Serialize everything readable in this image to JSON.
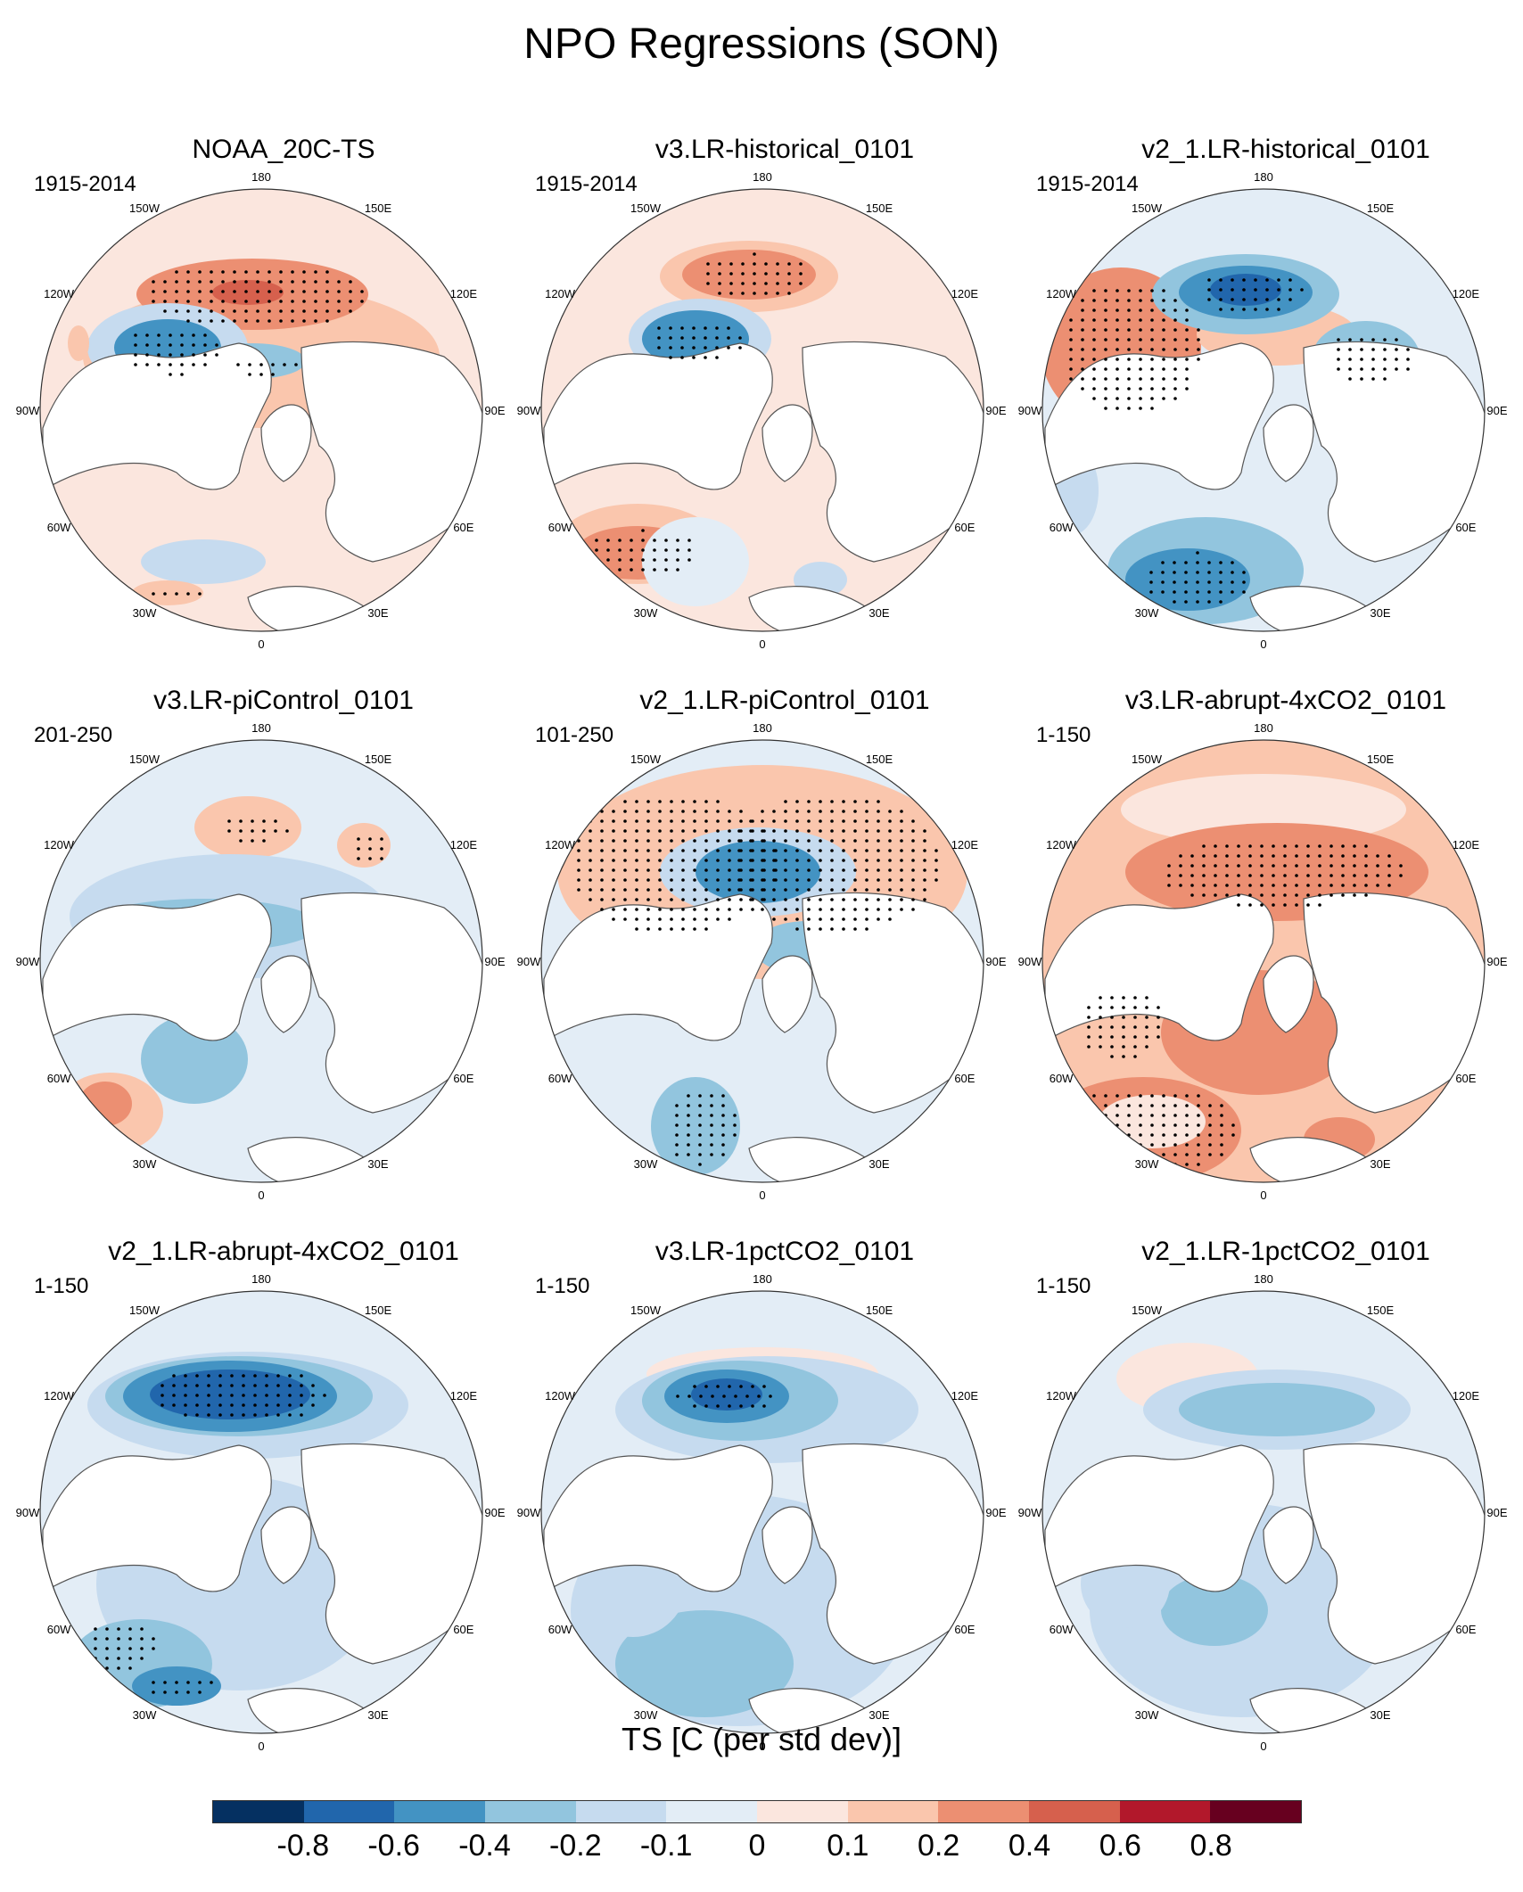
{
  "title": "NPO Regressions (SON)",
  "lon_labels": [
    "180",
    "150E",
    "120E",
    "90E",
    "60E",
    "30E",
    "0",
    "30W",
    "60W",
    "90W",
    "120W",
    "150W"
  ],
  "panels": [
    {
      "title": "NOAA_20C-TS",
      "years": "1915-2014",
      "pattern": "noaa"
    },
    {
      "title": "v3.LR-historical_0101",
      "years": "1915-2014",
      "pattern": "v3hist"
    },
    {
      "title": "v2_1.LR-historical_0101",
      "years": "1915-2014",
      "pattern": "v2hist"
    },
    {
      "title": "v3.LR-piControl_0101",
      "years": "201-250",
      "pattern": "v3pi"
    },
    {
      "title": "v2_1.LR-piControl_0101",
      "years": "101-250",
      "pattern": "v2pi"
    },
    {
      "title": "v3.LR-abrupt-4xCO2_0101",
      "years": "1-150",
      "pattern": "v3ab"
    },
    {
      "title": "v2_1.LR-abrupt-4xCO2_0101",
      "years": "1-150",
      "pattern": "v2ab"
    },
    {
      "title": "v3.LR-1pctCO2_0101",
      "years": "1-150",
      "pattern": "v3pct"
    },
    {
      "title": "v2_1.LR-1pctCO2_0101",
      "years": "1-150",
      "pattern": "v2pct"
    }
  ],
  "colorbar": {
    "title": "TS [C (per std dev)]",
    "colors": [
      "#053061",
      "#2166ac",
      "#4393c3",
      "#92c5de",
      "#c6dbef",
      "#e3edf6",
      "#fbe6de",
      "#fac6ad",
      "#ec8f72",
      "#d6604d",
      "#b2182b",
      "#67001f"
    ],
    "tick_labels": [
      "-0.8",
      "-0.6",
      "-0.4",
      "-0.2",
      "-0.1",
      "0",
      "0.1",
      "0.2",
      "0.4",
      "0.6",
      "0.8"
    ]
  },
  "colors": {
    "land": "#ffffff",
    "coast": "#555555",
    "stipple": "#000000"
  }
}
